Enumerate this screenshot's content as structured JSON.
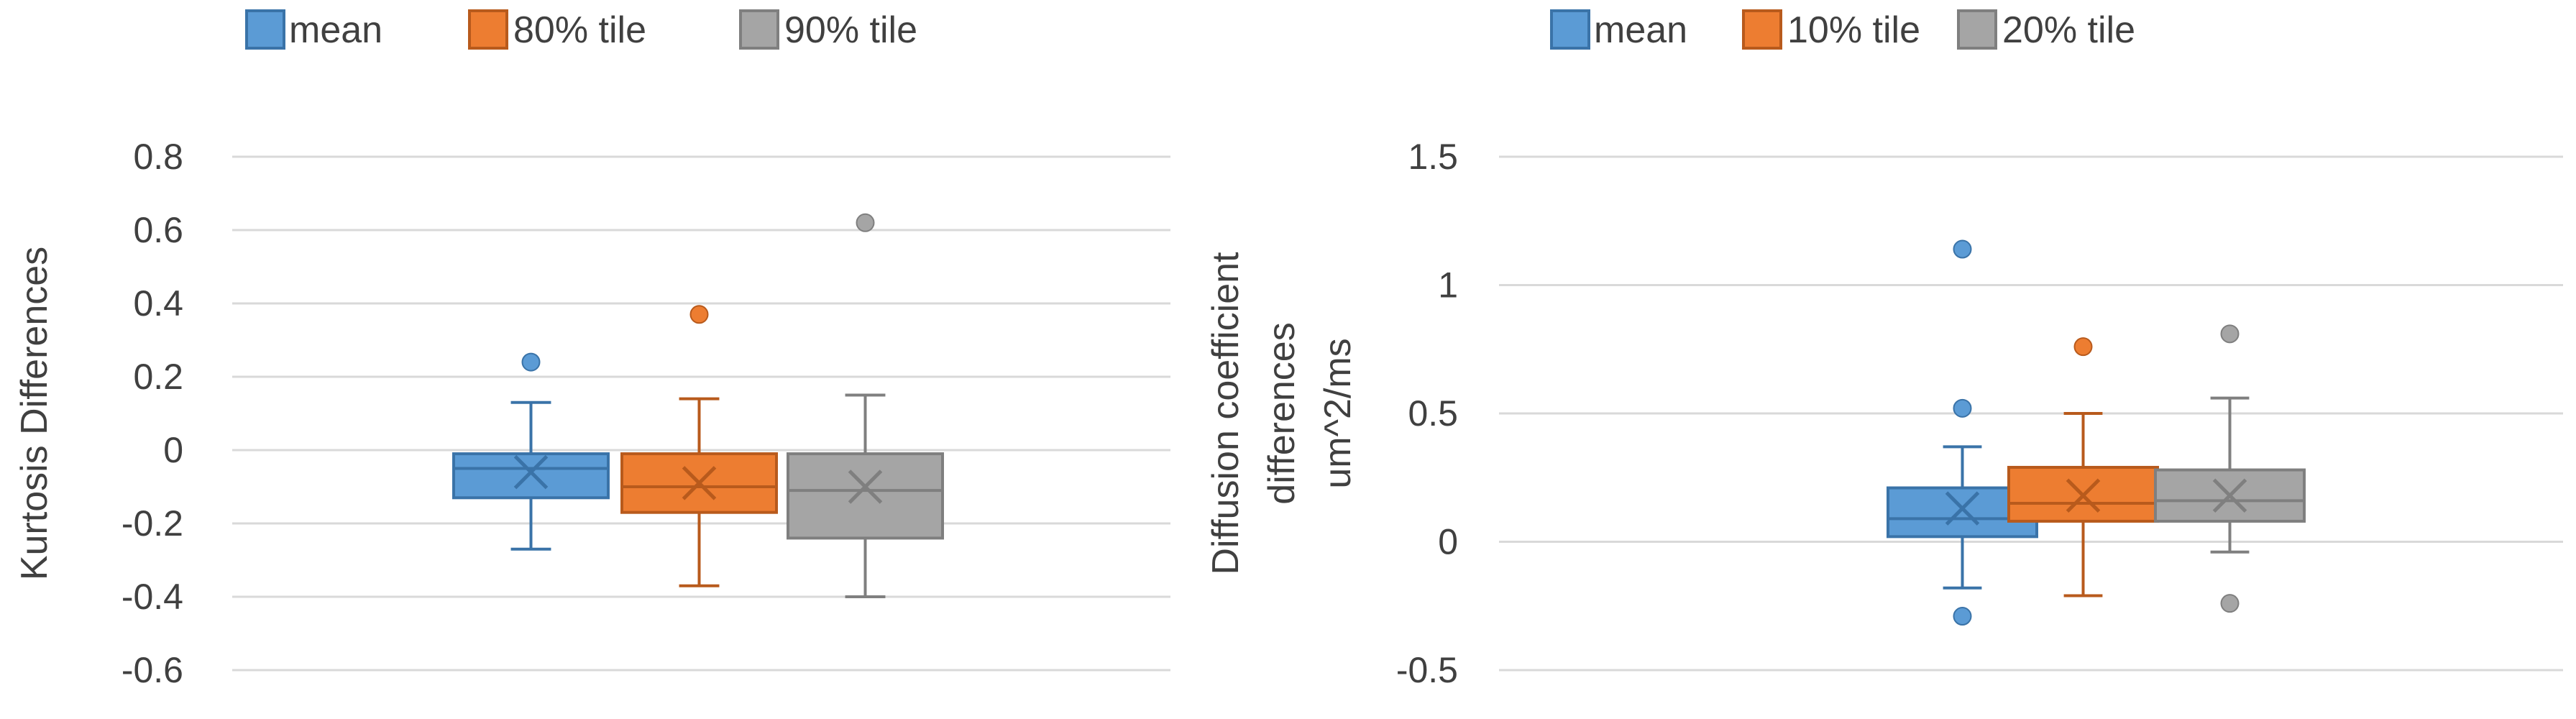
{
  "chart_data": [
    {
      "type": "box",
      "title": "",
      "xlabel": "",
      "ylabel": "Kurtosis Differences",
      "ylim": [
        -0.6,
        0.8
      ],
      "yticks": [
        0.8,
        0.6,
        0.4,
        0.2,
        0,
        -0.2,
        -0.4,
        -0.6
      ],
      "ytick_labels": [
        "0.8",
        "0.6",
        "0.4",
        "0.2",
        "0",
        "-0.2",
        "-0.4",
        "-0.6"
      ],
      "grid": true,
      "legend_position": "top",
      "series": [
        {
          "name": "mean",
          "color": "#5b9bd5",
          "stroke": "#3a73a8",
          "whisker_low": -0.27,
          "q1": -0.13,
          "median": -0.05,
          "q3": -0.01,
          "whisker_high": 0.13,
          "mean": -0.06,
          "outliers": [
            0.24
          ]
        },
        {
          "name": "80% tile",
          "color": "#ed7d31",
          "stroke": "#b85a1c",
          "whisker_low": -0.37,
          "q1": -0.17,
          "median": -0.1,
          "q3": -0.01,
          "whisker_high": 0.14,
          "mean": -0.09,
          "outliers": [
            0.37
          ]
        },
        {
          "name": "90% tile",
          "color": "#a5a5a5",
          "stroke": "#7f7f7f",
          "whisker_low": -0.4,
          "q1": -0.24,
          "median": -0.11,
          "q3": -0.01,
          "whisker_high": 0.15,
          "mean": -0.1,
          "outliers": [
            0.62
          ]
        }
      ]
    },
    {
      "type": "box",
      "title": "",
      "xlabel": "",
      "ylabel_lines": [
        "Diffusion coefficient",
        "differences",
        "um^2/ms"
      ],
      "ylim": [
        -0.5,
        1.5
      ],
      "yticks": [
        1.5,
        1,
        0.5,
        0,
        -0.5
      ],
      "ytick_labels": [
        "1.5",
        "1",
        "0.5",
        "0",
        "-0.5"
      ],
      "grid": true,
      "legend_position": "top",
      "series": [
        {
          "name": "mean",
          "color": "#5b9bd5",
          "stroke": "#3a73a8",
          "whisker_low": -0.18,
          "q1": 0.02,
          "median": 0.09,
          "q3": 0.21,
          "whisker_high": 0.37,
          "mean": 0.13,
          "outliers": [
            1.14,
            0.52,
            -0.29
          ]
        },
        {
          "name": "10% tile",
          "color": "#ed7d31",
          "stroke": "#b85a1c",
          "whisker_low": -0.21,
          "q1": 0.08,
          "median": 0.15,
          "q3": 0.29,
          "whisker_high": 0.5,
          "mean": 0.18,
          "outliers": [
            0.76
          ]
        },
        {
          "name": "20% tile",
          "color": "#a5a5a5",
          "stroke": "#7f7f7f",
          "whisker_low": -0.04,
          "q1": 0.08,
          "median": 0.16,
          "q3": 0.28,
          "whisker_high": 0.56,
          "mean": 0.18,
          "outliers": [
            0.81,
            -0.24
          ]
        }
      ]
    }
  ]
}
